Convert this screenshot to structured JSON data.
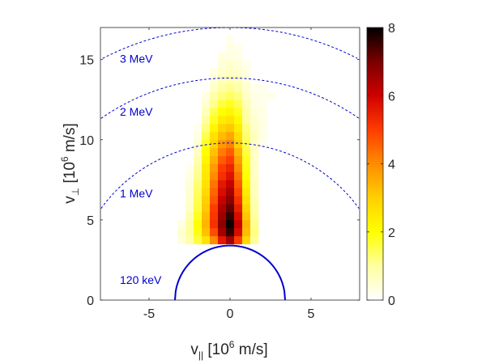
{
  "chart_data": {
    "type": "heatmap",
    "xlabel": {
      "main": "v",
      "sub": "||",
      "rest": " [10",
      "sup": "6",
      "end": " m/s]"
    },
    "ylabel": {
      "main": "v",
      "sub": "⊥",
      "rest": "  [10",
      "sup": "6",
      "end": " m/s]"
    },
    "xlim": [
      -8,
      8
    ],
    "ylim": [
      0,
      17
    ],
    "xticks": [
      -5,
      0,
      5
    ],
    "yticks": [
      0,
      5,
      10,
      15
    ],
    "colorbar": {
      "range": [
        0,
        8
      ],
      "ticks": [
        0,
        2,
        4,
        6,
        8
      ],
      "colormap": "hot-reversed"
    },
    "cell_size": 0.5,
    "columns": [
      {
        "x": -3.0,
        "y0": 3.5,
        "values": [
          0.4,
          0.5,
          0.3
        ]
      },
      {
        "x": -2.5,
        "y0": 3.5,
        "values": [
          0.9,
          1.0,
          1.0,
          0.8,
          0.6,
          0.5,
          0.5,
          0.4,
          0.3,
          0.2
        ]
      },
      {
        "x": -2.0,
        "y0": 3.5,
        "values": [
          1.6,
          1.9,
          2.0,
          1.8,
          1.6,
          1.5,
          1.4,
          1.3,
          1.1,
          1.0,
          0.8,
          0.6,
          0.5,
          0.3,
          0.2
        ]
      },
      {
        "x": -1.5,
        "y0": 3.5,
        "values": [
          2.6,
          3.2,
          3.4,
          3.3,
          3.1,
          3.0,
          2.8,
          2.6,
          2.5,
          2.4,
          2.2,
          2.0,
          1.8,
          1.5,
          1.2,
          1.0,
          0.7,
          0.5,
          0.3
        ]
      },
      {
        "x": -1.0,
        "y0": 3.5,
        "values": [
          4.0,
          4.8,
          5.2,
          5.1,
          5.0,
          4.7,
          4.5,
          4.3,
          4.0,
          3.8,
          3.5,
          3.2,
          2.9,
          2.6,
          2.2,
          1.8,
          1.5,
          1.1,
          0.9,
          0.6,
          0.4,
          0.3
        ]
      },
      {
        "x": -0.5,
        "y0": 3.5,
        "values": [
          5.6,
          6.5,
          6.8,
          6.6,
          6.4,
          6.1,
          5.8,
          5.6,
          5.2,
          5.0,
          4.6,
          4.2,
          3.8,
          3.3,
          2.9,
          2.4,
          2.0,
          1.6,
          1.2,
          0.9,
          0.7,
          0.5,
          0.4,
          0.3
        ]
      },
      {
        "x": 0.0,
        "y0": 3.5,
        "values": [
          6.5,
          7.6,
          7.9,
          7.6,
          7.2,
          6.8,
          6.5,
          6.1,
          5.7,
          5.4,
          5.0,
          4.6,
          4.1,
          3.6,
          3.1,
          2.6,
          2.2,
          1.8,
          1.4,
          1.1,
          0.8,
          0.6,
          0.5,
          0.3,
          0.3,
          0.2
        ]
      },
      {
        "x": 0.5,
        "y0": 3.5,
        "values": [
          5.0,
          5.8,
          6.1,
          5.8,
          5.5,
          5.2,
          4.9,
          4.6,
          4.3,
          4.0,
          3.7,
          3.4,
          3.0,
          2.7,
          2.4,
          2.1,
          1.8,
          1.5,
          1.2,
          0.9,
          0.7,
          0.5,
          0.4,
          0.3,
          0.2
        ]
      },
      {
        "x": 1.0,
        "y0": 3.5,
        "values": [
          2.8,
          3.3,
          3.4,
          3.1,
          2.9,
          2.6,
          2.4,
          2.2,
          2.0,
          1.9,
          1.8,
          1.6,
          1.5,
          1.3,
          1.2,
          1.0,
          0.9,
          0.8,
          0.6,
          0.5,
          0.4,
          0.3,
          0.2
        ]
      },
      {
        "x": 1.5,
        "y0": 3.5,
        "values": [
          1.0,
          1.2,
          1.1,
          1.0,
          0.9,
          0.8,
          0.7,
          0.7,
          0.6,
          0.6,
          0.6,
          0.6,
          0.6,
          0.7,
          0.6,
          0.5,
          0.4,
          0.3,
          0.3,
          0.2
        ]
      },
      {
        "x": 2.0,
        "y0": 9.5,
        "values": [
          0.2,
          0.3,
          0.3,
          0.3,
          0.3,
          0.2,
          0.2,
          0.2
        ]
      },
      {
        "x": 2.5,
        "y0": 12.5,
        "values": [
          0.2
        ]
      }
    ],
    "curves": [
      {
        "label": "3 MeV",
        "radius": 17.0,
        "style": "dashed",
        "label_at": [
          -6.8,
          14.8
        ]
      },
      {
        "label": "2 MeV",
        "radius": 13.85,
        "style": "dashed",
        "label_at": [
          -6.8,
          11.5
        ]
      },
      {
        "label": "1 MeV",
        "radius": 9.8,
        "style": "dashed",
        "label_at": [
          -6.8,
          6.4
        ]
      },
      {
        "label": "120 keV",
        "radius": 3.4,
        "style": "solid",
        "label_at": [
          -6.8,
          1.0
        ]
      }
    ],
    "curve_color": "#0000d0"
  }
}
